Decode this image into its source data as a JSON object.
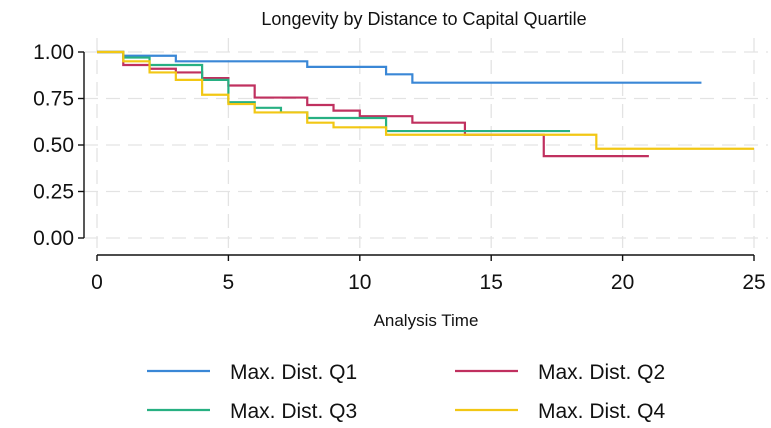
{
  "chart_data": {
    "type": "line",
    "title": "Longevity by Distance to Capital Quartile",
    "xlabel": "Analysis Time",
    "ylabel": "",
    "xlim": [
      0,
      25
    ],
    "ylim": [
      0,
      1
    ],
    "x_ticks": [
      0,
      5,
      10,
      15,
      20,
      25
    ],
    "y_ticks": [
      0,
      0.25,
      0.5,
      0.75,
      1
    ],
    "x_tick_labels": [
      "0",
      "5",
      "10",
      "15",
      "20",
      "25"
    ],
    "y_tick_labels": [
      "0.00",
      "0.25",
      "0.50",
      "0.75",
      "1.00"
    ],
    "grid": true,
    "legend_position": "bottom",
    "step": true,
    "series": [
      {
        "name": "Max. Dist. Q1",
        "color": "#3a87d6",
        "x": [
          0,
          1,
          3,
          8,
          11,
          12,
          23
        ],
        "y": [
          1.0,
          0.98,
          0.95,
          0.92,
          0.88,
          0.835,
          0.835
        ]
      },
      {
        "name": "Max. Dist. Q2",
        "color": "#c0305f",
        "x": [
          0,
          1,
          2,
          3,
          4,
          5,
          6,
          8,
          9,
          10,
          12,
          14,
          17,
          21
        ],
        "y": [
          1.0,
          0.93,
          0.91,
          0.89,
          0.86,
          0.82,
          0.755,
          0.715,
          0.685,
          0.655,
          0.62,
          0.555,
          0.44,
          0.44
        ]
      },
      {
        "name": "Max. Dist. Q3",
        "color": "#27b082",
        "x": [
          0,
          1,
          2,
          4,
          5,
          6,
          7,
          8,
          11,
          18
        ],
        "y": [
          1.0,
          0.97,
          0.93,
          0.85,
          0.73,
          0.7,
          0.675,
          0.645,
          0.575,
          0.575
        ]
      },
      {
        "name": "Max. Dist. Q4",
        "color": "#f2c714",
        "x": [
          0,
          1,
          2,
          3,
          4,
          5,
          6,
          8,
          9,
          11,
          19,
          25
        ],
        "y": [
          1.0,
          0.95,
          0.89,
          0.85,
          0.77,
          0.72,
          0.675,
          0.62,
          0.595,
          0.555,
          0.48,
          0.48
        ]
      }
    ]
  }
}
